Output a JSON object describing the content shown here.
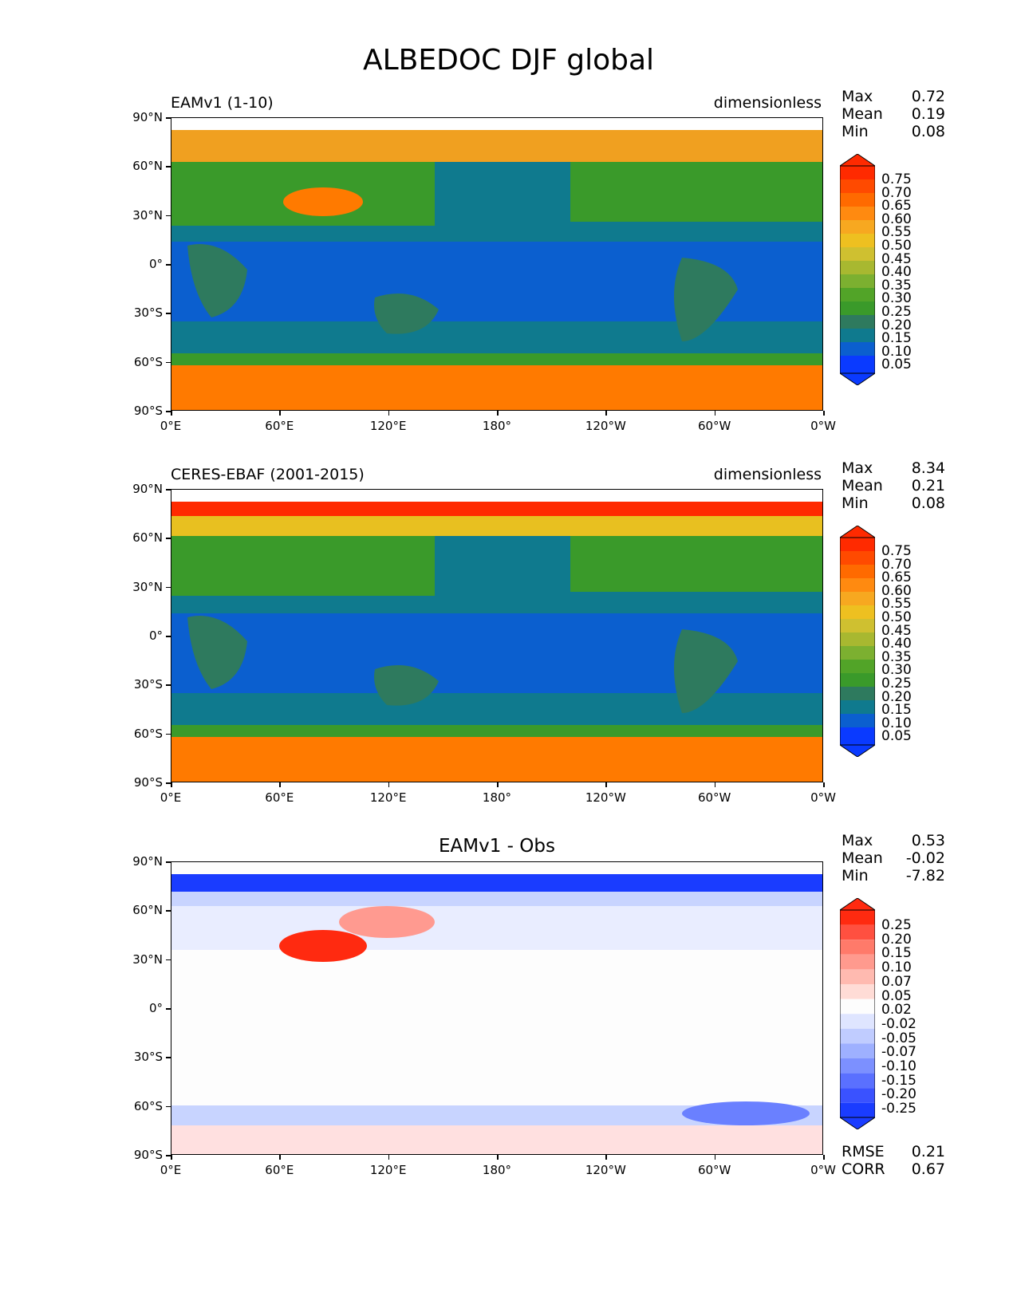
{
  "figure_title": "ALBEDOC DJF global",
  "x_ticks": [
    "0°E",
    "60°E",
    "120°E",
    "180°",
    "120°W",
    "60°W",
    "0°W"
  ],
  "y_ticks": [
    "90°N",
    "60°N",
    "30°N",
    "0°",
    "30°S",
    "60°S",
    "90°S"
  ],
  "panels": [
    {
      "title_left": "EAMv1 (1-10)",
      "title_right": "dimensionless",
      "stats": [
        {
          "label": "Max",
          "value": "0.72"
        },
        {
          "label": "Mean",
          "value": "0.19"
        },
        {
          "label": "Min",
          "value": "0.08"
        }
      ],
      "colorbar_labels": [
        "0.75",
        "0.70",
        "0.65",
        "0.60",
        "0.55",
        "0.50",
        "0.45",
        "0.40",
        "0.35",
        "0.30",
        "0.25",
        "0.20",
        "0.15",
        "0.10",
        "0.05"
      ]
    },
    {
      "title_left": "CERES-EBAF (2001-2015)",
      "title_right": "dimensionless",
      "stats": [
        {
          "label": "Max",
          "value": "8.34"
        },
        {
          "label": "Mean",
          "value": "0.21"
        },
        {
          "label": "Min",
          "value": "0.08"
        }
      ],
      "colorbar_labels": [
        "0.75",
        "0.70",
        "0.65",
        "0.60",
        "0.55",
        "0.50",
        "0.45",
        "0.40",
        "0.35",
        "0.30",
        "0.25",
        "0.20",
        "0.15",
        "0.10",
        "0.05"
      ]
    },
    {
      "title_center": "EAMv1 - Obs",
      "stats": [
        {
          "label": "Max",
          "value": "0.53"
        },
        {
          "label": "Mean",
          "value": "-0.02"
        },
        {
          "label": "Min",
          "value": "-7.82"
        }
      ],
      "colorbar_labels": [
        "0.25",
        "0.20",
        "0.15",
        "0.10",
        "0.07",
        "0.05",
        "0.02",
        "-0.02",
        "-0.05",
        "-0.07",
        "-0.10",
        "-0.15",
        "-0.20",
        "-0.25"
      ],
      "bottom_stats": [
        {
          "label": "RMSE",
          "value": "0.21"
        },
        {
          "label": "CORR",
          "value": "0.67"
        }
      ]
    }
  ],
  "colors": {
    "ocean_low": "#0b5fcf",
    "ocean_mid": "#0f7a8e",
    "land_low": "#2e7a5e",
    "green": "#3a9a2a",
    "yellow": "#e8c020",
    "orange": "#ff7a00",
    "red": "#ff2a00",
    "diff_blue": "#1a3cff",
    "diff_red": "#ff2a10"
  }
}
